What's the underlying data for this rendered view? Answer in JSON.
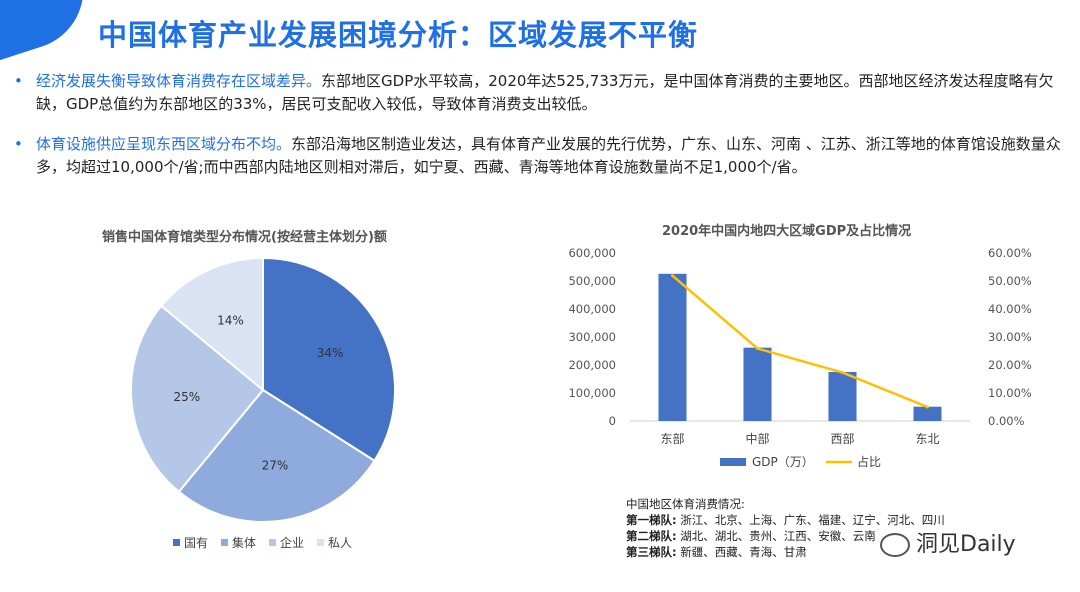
{
  "header": {
    "title": "中国体育产业发展困境分析：区域发展不平衡"
  },
  "bullets": [
    {
      "highlight": "经济发展失衡导致体育消费存在区域差异。",
      "text": "东部地区GDP水平较高，2020年达525,733万元，是中国体育消费的主要地区。西部地区经济发达程度略有欠缺，GDP总值约为东部地区的33%，居民可支配收入较低，导致体育消费支出较低。"
    },
    {
      "highlight": "体育设施供应呈现东西区域分布不均。",
      "text": "东部沿海地区制造业发达，具有体育产业发展的先行优势，广东、山东、河南 、江苏、浙江等地的体育馆设施数量众多，均超过10,000个/省;而中西部内陆地区则相对滞后，如宁夏、西藏、青海等地体育设施数量尚不足1,000个/省。"
    }
  ],
  "chart_data": [
    {
      "type": "pie",
      "title": "销售中国体育馆类型分布情况(按经营主体划分)额",
      "categories": [
        "国有",
        "集体",
        "企业",
        "私人"
      ],
      "values": [
        34,
        27,
        25,
        14
      ],
      "labels": [
        "34%",
        "27%",
        "25%",
        "14%"
      ],
      "colors": [
        "#4472c4",
        "#8faadc",
        "#b4c7e7",
        "#dae3f3"
      ],
      "legend_position": "bottom"
    },
    {
      "type": "bar",
      "title": "2020年中国内地四大区域GDP及占比情况",
      "categories": [
        "东部",
        "中部",
        "西部",
        "东北"
      ],
      "series": [
        {
          "name": "GDP（万）",
          "type": "bar",
          "axis": "left",
          "color": "#4472c4",
          "values": [
            525733,
            262000,
            175000,
            51000
          ]
        },
        {
          "name": "占比",
          "type": "line",
          "axis": "right",
          "color": "#ffc000",
          "values": [
            51.9,
            25.9,
            17.3,
            5.0
          ]
        }
      ],
      "ylim": [
        0,
        600000
      ],
      "y_ticks": [
        "0",
        "100,000",
        "200,000",
        "300,000",
        "400,000",
        "500,000",
        "600,000"
      ],
      "y2lim": [
        0,
        60
      ],
      "y2_ticks": [
        "0.00%",
        "10.00%",
        "20.00%",
        "30.00%",
        "40.00%",
        "50.00%",
        "60.00%"
      ],
      "grid": false,
      "legend_position": "bottom"
    }
  ],
  "notes": {
    "heading": "中国地区体育消费情况:",
    "rows": [
      {
        "label": "第一梯队:",
        "value": "浙江、北京、上海、广东、福建、辽宁、河北、四川"
      },
      {
        "label": "第二梯队:",
        "value": "湖北、湖北、贵州、江西、安徽、云南"
      },
      {
        "label": "第三梯队:",
        "value": "新疆、西藏、青海、甘肃"
      }
    ]
  },
  "watermark": {
    "text": "洞见Daily",
    "icon": "wechat-icon"
  }
}
